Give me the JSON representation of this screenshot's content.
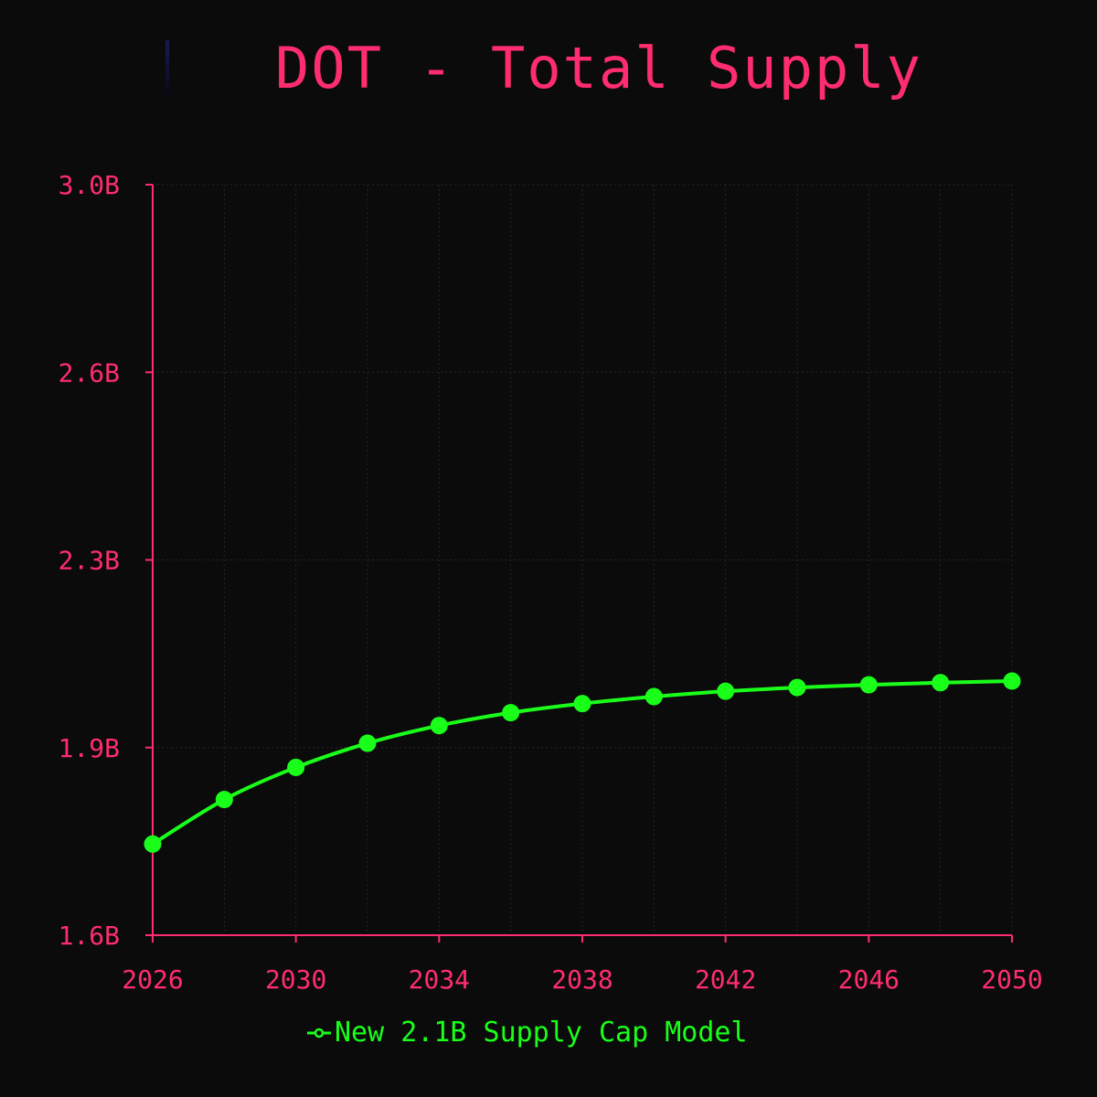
{
  "colors": {
    "background": "#0b0b0b",
    "accent": "#ff2d6f",
    "series": "#1aff1a",
    "grid": "#262626"
  },
  "chart_data": {
    "type": "line",
    "title": "DOT - Total Supply",
    "xlabel": "",
    "ylabel": "",
    "xlim": [
      2026,
      2050
    ],
    "ylim": [
      1.6,
      3.0
    ],
    "x_ticks": [
      2026,
      2030,
      2034,
      2038,
      2042,
      2046,
      2050
    ],
    "x_tick_labels": [
      "2026",
      "2030",
      "2034",
      "2038",
      "2042",
      "2046",
      "2050"
    ],
    "y_ticks": [
      1.6,
      1.95,
      2.3,
      2.65,
      3.0
    ],
    "y_tick_labels": [
      "1.6B",
      "1.9B",
      "2.3B",
      "2.6B",
      "3.0B"
    ],
    "grid": true,
    "legend_position": "bottom",
    "series": [
      {
        "name": "New 2.1B Supply Cap Model",
        "x": [
          2026,
          2028,
          2030,
          2032,
          2034,
          2036,
          2038,
          2040,
          2042,
          2044,
          2046,
          2048,
          2050
        ],
        "values": [
          1.77,
          1.853,
          1.913,
          1.958,
          1.991,
          2.015,
          2.032,
          2.045,
          2.055,
          2.062,
          2.067,
          2.071,
          2.074
        ]
      }
    ]
  }
}
